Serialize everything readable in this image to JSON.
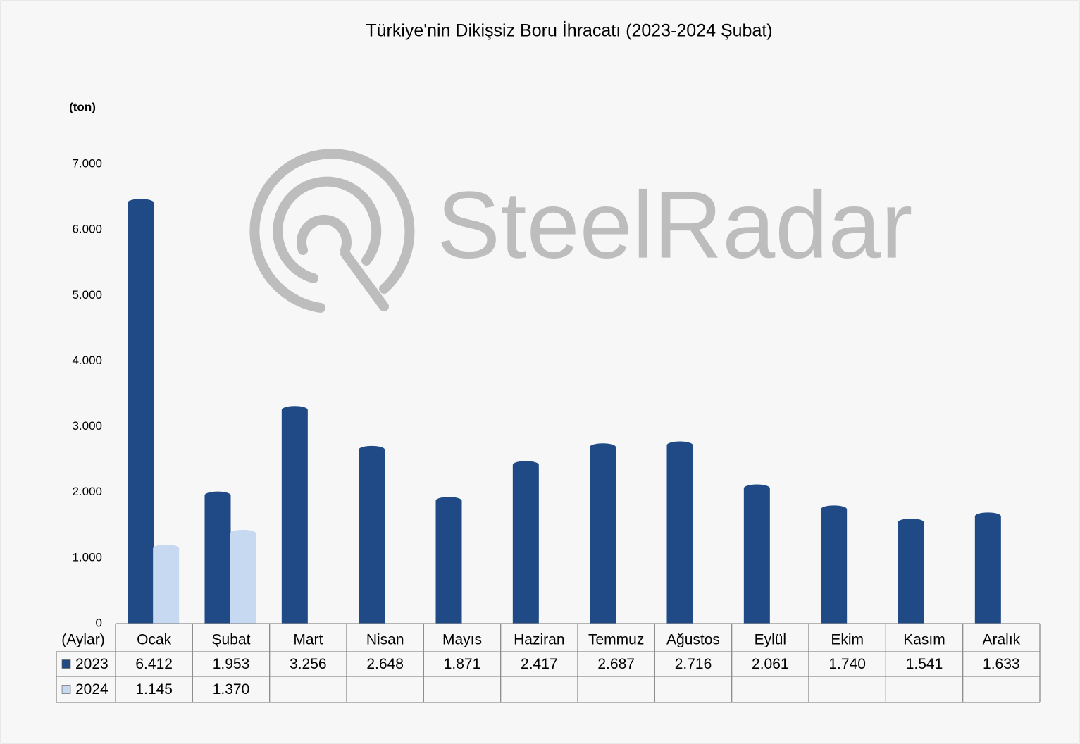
{
  "chart_data": {
    "type": "bar",
    "title": "Türkiye'nin Dikişsiz Boru İhracatı (2023-2024 Şubat)",
    "y_label": "(ton)",
    "x_label": "(Aylar)",
    "watermark": "SteelRadar",
    "categories": [
      "Ocak",
      "Şubat",
      "Mart",
      "Nisan",
      "Mayıs",
      "Haziran",
      "Temmuz",
      "Ağustos",
      "Eylül",
      "Ekim",
      "Kasım",
      "Aralık"
    ],
    "series": [
      {
        "name": "2023",
        "color": "#1f4a86",
        "values": [
          6412,
          1953,
          3256,
          2648,
          1871,
          2417,
          2687,
          2716,
          2061,
          1740,
          1541,
          1633
        ],
        "value_labels": [
          "6.412",
          "1.953",
          "3.256",
          "2.648",
          "1.871",
          "2.417",
          "2.687",
          "2.716",
          "2.061",
          "1.740",
          "1.541",
          "1.633"
        ]
      },
      {
        "name": "2024",
        "color": "#c6d9f0",
        "values": [
          1145,
          1370,
          null,
          null,
          null,
          null,
          null,
          null,
          null,
          null,
          null,
          null
        ],
        "value_labels": [
          "1.145",
          "1.370",
          null,
          null,
          null,
          null,
          null,
          null,
          null,
          null,
          null,
          null
        ]
      }
    ],
    "ylim": [
      0,
      7000
    ],
    "yticks": [
      0,
      {
        "value": 1000,
        "label": "1.000"
      },
      {
        "value": 2000,
        "label": "2.000"
      },
      {
        "value": 3000,
        "label": "3.000"
      },
      {
        "value": 4000,
        "label": "4.000"
      },
      {
        "value": 5000,
        "label": "5.000"
      },
      {
        "value": 6000,
        "label": "6.000"
      },
      {
        "value": 7000,
        "label": "7.000"
      }
    ],
    "grid": false
  }
}
